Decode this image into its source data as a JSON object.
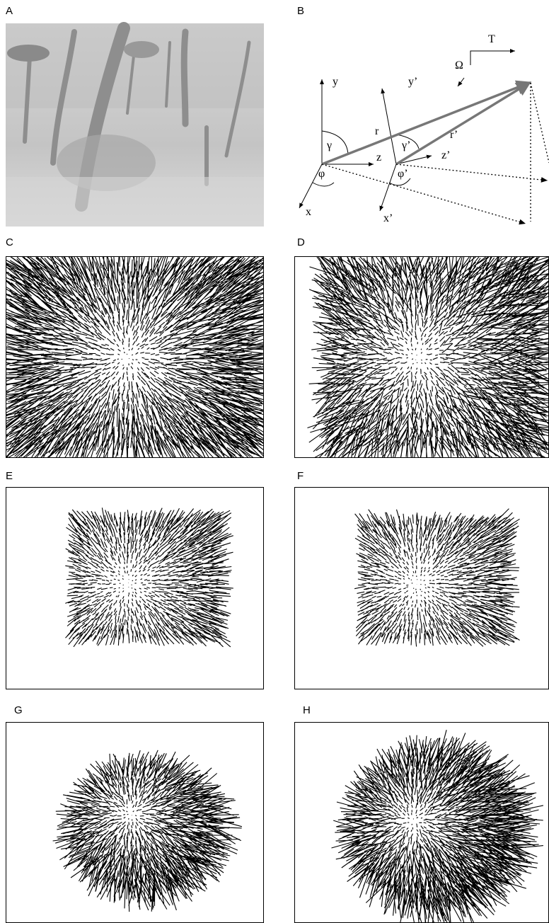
{
  "panels": [
    {
      "label": "A"
    },
    {
      "label": "B"
    },
    {
      "label": "C"
    },
    {
      "label": "D"
    },
    {
      "label": "E"
    },
    {
      "label": "F"
    },
    {
      "label": "G"
    },
    {
      "label": "H"
    }
  ],
  "diagram": {
    "labels": {
      "y": "y",
      "T": "T",
      "omega": "Ω",
      "y_prime": "y’",
      "r": "r",
      "r_prime": "r’",
      "gamma": "γ",
      "gamma_prime": "γ’",
      "z": "z",
      "z_prime": "z’",
      "phi": "φ",
      "phi_prime": "φ’",
      "x": "x",
      "x_prime": "x’"
    }
  }
}
